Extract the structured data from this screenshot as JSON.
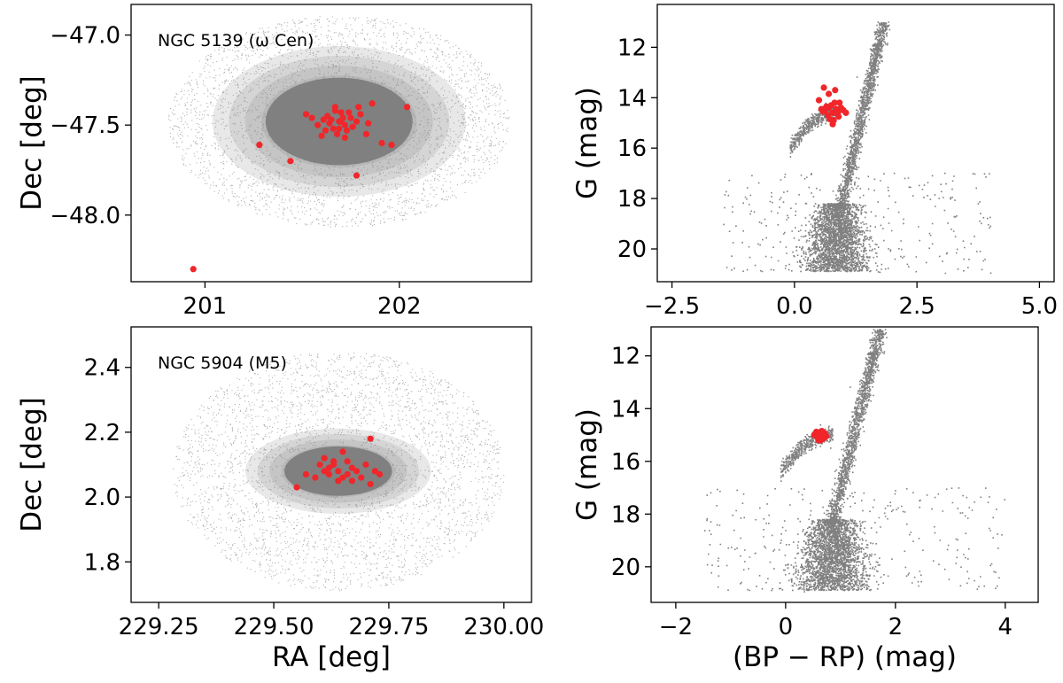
{
  "colors": {
    "background_stars": "#808080",
    "members": "#f0262a",
    "axes": "#000000"
  },
  "chart_data": [
    {
      "type": "scatter",
      "panel": "top-left",
      "annotation": "NGC 5139 (ω Cen)",
      "xlabel": "",
      "ylabel": "Dec [deg]",
      "xlim": [
        200.62,
        202.68
      ],
      "ylim": [
        -48.37,
        -46.83
      ],
      "y_inverted": false,
      "xticks": [
        201,
        202
      ],
      "xtick_labels": [
        "201",
        "202"
      ],
      "yticks": [
        -47.0,
        -47.5,
        -48.0
      ],
      "ytick_labels": [
        "−47.0",
        "−47.5",
        "−48.0"
      ],
      "field": {
        "shape": "ellipse",
        "center": [
          201.69,
          -47.48
        ],
        "semi_axes": [
          0.88,
          0.59
        ],
        "core_semi_axes": [
          0.42,
          0.27
        ]
      },
      "series": [
        {
          "values": [
            [
              201.69,
              -47.48
            ],
            [
              201.63,
              -47.45
            ],
            [
              201.72,
              -47.5
            ],
            [
              201.66,
              -47.52
            ],
            [
              201.75,
              -47.46
            ],
            [
              201.7,
              -47.43
            ],
            [
              201.64,
              -47.49
            ],
            [
              201.78,
              -47.48
            ],
            [
              201.68,
              -47.55
            ],
            [
              201.73,
              -47.53
            ],
            [
              201.61,
              -47.47
            ],
            [
              201.67,
              -47.42
            ],
            [
              201.8,
              -47.44
            ],
            [
              201.58,
              -47.5
            ],
            [
              201.71,
              -47.46
            ],
            [
              201.76,
              -47.51
            ],
            [
              201.65,
              -47.47
            ],
            [
              201.69,
              -47.52
            ],
            [
              201.74,
              -47.43
            ],
            [
              201.62,
              -47.53
            ],
            [
              201.84,
              -47.49
            ],
            [
              201.55,
              -47.46
            ],
            [
              201.7,
              -47.48
            ],
            [
              201.79,
              -47.4
            ],
            [
              201.86,
              -47.38
            ],
            [
              201.52,
              -47.44
            ],
            [
              201.83,
              -47.55
            ],
            [
              201.6,
              -47.56
            ],
            [
              201.67,
              -47.4
            ],
            [
              201.72,
              -47.57
            ],
            [
              202.04,
              -47.4
            ],
            [
              201.91,
              -47.6
            ],
            [
              201.96,
              -47.61
            ],
            [
              201.28,
              -47.61
            ],
            [
              201.44,
              -47.7
            ],
            [
              201.78,
              -47.78
            ],
            [
              200.94,
              -48.3
            ]
          ]
        }
      ]
    },
    {
      "type": "scatter",
      "panel": "top-right",
      "xlabel": "",
      "ylabel": "G (mag)",
      "xlim": [
        -2.8,
        5.3
      ],
      "ylim": [
        21.3,
        10.3
      ],
      "y_inverted": true,
      "xticks": [
        -2.5,
        0.0,
        2.5,
        5.0
      ],
      "xtick_labels": [
        "−2.5",
        "0.0",
        "2.5",
        "5.0"
      ],
      "yticks": [
        12,
        14,
        16,
        18,
        20
      ],
      "ytick_labels": [
        "12",
        "14",
        "16",
        "18",
        "20"
      ],
      "series": [
        {
          "values": [
            [
              0.62,
              14.5
            ],
            [
              0.7,
              14.4
            ],
            [
              0.78,
              14.6
            ],
            [
              0.85,
              14.45
            ],
            [
              0.92,
              14.5
            ],
            [
              0.68,
              14.7
            ],
            [
              0.75,
              14.3
            ],
            [
              0.88,
              14.65
            ],
            [
              0.95,
              14.4
            ],
            [
              0.58,
              14.55
            ],
            [
              0.82,
              14.2
            ],
            [
              1.0,
              14.5
            ],
            [
              0.72,
              14.85
            ],
            [
              0.65,
              14.35
            ],
            [
              0.9,
              14.75
            ],
            [
              0.8,
              14.9
            ],
            [
              0.55,
              14.45
            ],
            [
              1.05,
              14.6
            ],
            [
              0.6,
              13.6
            ],
            [
              0.7,
              13.85
            ],
            [
              0.83,
              13.7
            ],
            [
              0.5,
              14.1
            ],
            [
              0.78,
              15.05
            ],
            [
              0.92,
              14.2
            ]
          ]
        }
      ]
    },
    {
      "type": "scatter",
      "panel": "bottom-left",
      "annotation": "NGC 5904 (M5)",
      "xlabel": "RA [deg]",
      "ylabel": "Dec [deg]",
      "xlim": [
        229.19,
        230.06
      ],
      "ylim": [
        1.675,
        2.525
      ],
      "y_inverted": false,
      "xticks": [
        229.25,
        229.5,
        229.75,
        230.0
      ],
      "xtick_labels": [
        "229.25",
        "229.50",
        "229.75",
        "230.00"
      ],
      "yticks": [
        1.8,
        2.0,
        2.2,
        2.4
      ],
      "ytick_labels": [
        "1.8",
        "2.0",
        "2.2",
        "2.4"
      ],
      "field": {
        "shape": "ellipse",
        "center": [
          229.64,
          2.08
        ],
        "semi_axes": [
          0.36,
          0.37
        ],
        "core_semi_axes": [
          0.13,
          0.085
        ]
      },
      "series": [
        {
          "values": [
            [
              229.64,
              2.08
            ],
            [
              229.62,
              2.09
            ],
            [
              229.66,
              2.07
            ],
            [
              229.63,
              2.1
            ],
            [
              229.65,
              2.06
            ],
            [
              229.61,
              2.08
            ],
            [
              229.67,
              2.09
            ],
            [
              229.6,
              2.1
            ],
            [
              229.68,
              2.08
            ],
            [
              229.64,
              2.05
            ],
            [
              229.62,
              2.07
            ],
            [
              229.66,
              2.11
            ],
            [
              229.7,
              2.1
            ],
            [
              229.59,
              2.06
            ],
            [
              229.69,
              2.06
            ],
            [
              229.65,
              2.14
            ],
            [
              229.57,
              2.07
            ],
            [
              229.72,
              2.08
            ],
            [
              229.63,
              2.11
            ],
            [
              229.67,
              2.05
            ],
            [
              229.71,
              2.18
            ],
            [
              229.55,
              2.03
            ],
            [
              229.71,
              2.04
            ],
            [
              229.61,
              2.12
            ],
            [
              229.73,
              2.07
            ]
          ]
        }
      ]
    },
    {
      "type": "scatter",
      "panel": "bottom-right",
      "xlabel": "(BP − RP) (mag)",
      "ylabel": "G (mag)",
      "xlim": [
        -2.45,
        4.6
      ],
      "ylim": [
        21.35,
        10.9
      ],
      "y_inverted": true,
      "xticks": [
        -2,
        0,
        2,
        4
      ],
      "xtick_labels": [
        "−2",
        "0",
        "2",
        "4"
      ],
      "yticks": [
        12,
        14,
        16,
        18,
        20
      ],
      "ytick_labels": [
        "12",
        "14",
        "16",
        "18",
        "20"
      ],
      "series": [
        {
          "values": [
            [
              0.55,
              15.0
            ],
            [
              0.6,
              14.95
            ],
            [
              0.65,
              15.05
            ],
            [
              0.7,
              15.0
            ],
            [
              0.58,
              15.1
            ],
            [
              0.62,
              14.9
            ],
            [
              0.68,
              15.15
            ],
            [
              0.72,
              14.95
            ],
            [
              0.56,
              14.88
            ],
            [
              0.64,
              15.2
            ],
            [
              0.74,
              15.05
            ],
            [
              0.6,
              15.2
            ],
            [
              0.66,
              14.85
            ],
            [
              0.52,
              15.0
            ],
            [
              0.7,
              15.12
            ]
          ]
        }
      ]
    }
  ]
}
